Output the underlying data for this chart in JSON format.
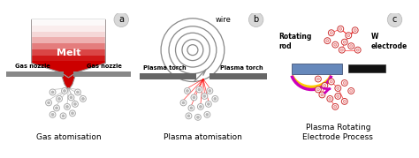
{
  "bg_color": "#ffffff",
  "panel_a": {
    "label": "a",
    "title": "Gas atomisation",
    "melt_text": "Melt",
    "nozzle_left": "Gas nozzle",
    "nozzle_right": "Gas nozzle"
  },
  "panel_b": {
    "label": "b",
    "title": "Plasma atomisation",
    "wire_text": "wire",
    "torch_left": "Plasma torch",
    "torch_right": "Plasma torch"
  },
  "panel_c": {
    "label": "c",
    "title": "Plasma Rotating\nElectrode Process",
    "rod_text": "Rotating\nrod",
    "electrode_text": "W\nelectrode"
  }
}
